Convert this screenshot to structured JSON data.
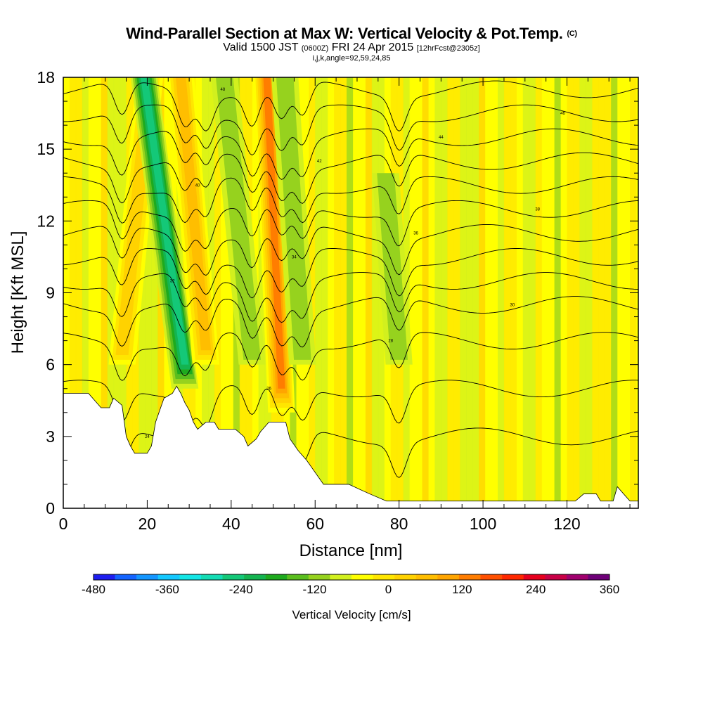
{
  "title": {
    "main": "Wind-Parallel Section at Max W: Vertical Velocity & Pot.Temp.",
    "main_mark": "(C)",
    "valid_prefix": "Valid 1500 JST",
    "valid_z": "(0600Z)",
    "valid_date": "FRI 24 Apr 2015",
    "fcst": "[12hrFcst@2305z]",
    "params": "i,j,k,angle=92,59,24,85"
  },
  "chart_data": {
    "type": "heatmap",
    "xlabel": "Distance [nm]",
    "ylabel": "Height [Kft MSL]",
    "xlim": [
      0,
      137
    ],
    "ylim": [
      0,
      18
    ],
    "x_ticks": [
      0,
      20,
      40,
      60,
      80,
      100,
      120
    ],
    "y_ticks": [
      0,
      3,
      6,
      9,
      12,
      15,
      18
    ],
    "colorbar": {
      "label": "Vertical Velocity [cm/s]",
      "range": [
        -480,
        360
      ],
      "step": 40,
      "tick_labels": [
        -480,
        -360,
        -240,
        -120,
        0,
        120,
        240,
        360
      ],
      "colors": [
        "#1e1ef0",
        "#1464ff",
        "#1496ff",
        "#14c8ff",
        "#14e6e6",
        "#14dcb4",
        "#14c878",
        "#14b450",
        "#1eaa1e",
        "#5abe1e",
        "#96d21e",
        "#d2f01e",
        "#ffff00",
        "#ffe600",
        "#ffd200",
        "#ffbe00",
        "#ffa500",
        "#ff7d00",
        "#ff5000",
        "#ff2800",
        "#e6001e",
        "#c80046",
        "#a0006e",
        "#6e0078"
      ]
    },
    "terrain_kft": [
      [
        0,
        4.8
      ],
      [
        6,
        4.8
      ],
      [
        8,
        4.4
      ],
      [
        9,
        4.2
      ],
      [
        11,
        4.2
      ],
      [
        12,
        4.6
      ],
      [
        14,
        4.3
      ],
      [
        15,
        3.0
      ],
      [
        16,
        2.6
      ],
      [
        17,
        2.3
      ],
      [
        20,
        2.3
      ],
      [
        21,
        2.6
      ],
      [
        22,
        3.6
      ],
      [
        23,
        4.1
      ],
      [
        24,
        4.6
      ],
      [
        26,
        4.8
      ],
      [
        27,
        5.1
      ],
      [
        28,
        4.8
      ],
      [
        29,
        4.4
      ],
      [
        30,
        4.1
      ],
      [
        31,
        3.6
      ],
      [
        32,
        3.3
      ],
      [
        34,
        3.6
      ],
      [
        36,
        3.6
      ],
      [
        37,
        3.3
      ],
      [
        41,
        3.3
      ],
      [
        43,
        3.0
      ],
      [
        44,
        2.6
      ],
      [
        46,
        2.9
      ],
      [
        47,
        3.2
      ],
      [
        49,
        3.6
      ],
      [
        53,
        3.6
      ],
      [
        54,
        2.9
      ],
      [
        56,
        2.4
      ],
      [
        58,
        2.0
      ],
      [
        62,
        1.0
      ],
      [
        68,
        1.0
      ],
      [
        73,
        0.6
      ],
      [
        77,
        0.3
      ],
      [
        122,
        0.3
      ],
      [
        124,
        0.6
      ],
      [
        127,
        0.6
      ],
      [
        128,
        0.3
      ],
      [
        131,
        0.3
      ],
      [
        132,
        0.9
      ],
      [
        135,
        0.3
      ],
      [
        137,
        0.3
      ]
    ],
    "bands": [
      {
        "x": 14,
        "w": 110,
        "h0": 6,
        "h1": 18,
        "tilt": 0.55
      },
      {
        "x": 29,
        "w": -230,
        "h0": 5,
        "h1": 18,
        "tilt": -0.75
      },
      {
        "x": 34,
        "w": 150,
        "h0": 6,
        "h1": 18,
        "tilt": -0.5
      },
      {
        "x": 45,
        "w": -90,
        "h0": 6,
        "h1": 18,
        "tilt": -0.55
      },
      {
        "x": 52,
        "w": 220,
        "h0": 4,
        "h1": 18,
        "tilt": -0.25
      },
      {
        "x": 57,
        "w": -80,
        "h0": 6,
        "h1": 18,
        "tilt": -0.35
      },
      {
        "x": 80,
        "w": -80,
        "h0": 6,
        "h1": 14,
        "tilt": -0.4
      }
    ],
    "theta_contours": [
      {
        "base": 3,
        "label": "24"
      },
      {
        "base": 5,
        "label": "26"
      },
      {
        "base": 7,
        "label": "28"
      },
      {
        "base": 8.5,
        "label": "30"
      },
      {
        "base": 9.5,
        "label": "32"
      },
      {
        "base": 10.5,
        "label": "34"
      },
      {
        "base": 11.5,
        "label": "36"
      },
      {
        "base": 12.5,
        "label": "38"
      },
      {
        "base": 13.5,
        "label": "40"
      },
      {
        "base": 14.5,
        "label": "42"
      },
      {
        "base": 15.5,
        "label": "44"
      },
      {
        "base": 16.5,
        "label": "46"
      },
      {
        "base": 17.5,
        "label": "48"
      }
    ]
  }
}
